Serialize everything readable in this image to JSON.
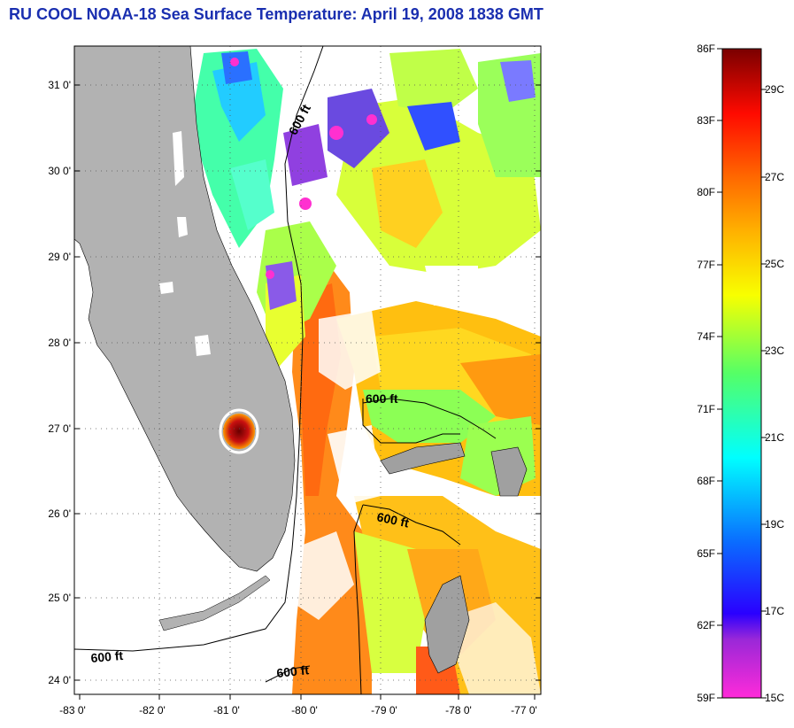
{
  "title": "RU COOL  NOAA-18  Sea Surface Temperature:  April 19, 2008 1838 GMT",
  "map": {
    "lat_ticks": [
      "31 0'",
      "30 0'",
      "29 0'",
      "28 0'",
      "27 0'",
      "26 0'",
      "25 0'",
      "24 0'"
    ],
    "lon_ticks": [
      "-83 0'",
      "-82 0'",
      "-81 0'",
      "-80 0'",
      "-79 0'",
      "-78 0'",
      "-77 0'"
    ],
    "contour_labels": [
      "600 ft",
      "600 ft",
      "600 ft",
      "600 ft",
      "600 ft"
    ],
    "colors": {
      "land": "#b2b2b2",
      "cloud": "#ffffff"
    }
  },
  "colorbar": {
    "f_labels": [
      "86F",
      "83F",
      "80F",
      "77F",
      "74F",
      "71F",
      "68F",
      "65F",
      "62F",
      "59F"
    ],
    "c_labels": [
      "29C",
      "27C",
      "25C",
      "23C",
      "21C",
      "19C",
      "17C",
      "15C"
    ]
  }
}
